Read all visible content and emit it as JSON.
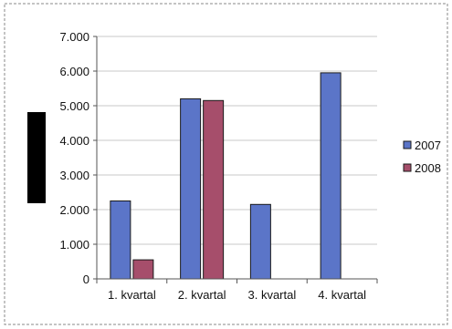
{
  "chart_data": {
    "type": "bar",
    "title": "",
    "xlabel": "",
    "ylabel": "",
    "categories": [
      "1. kvartal",
      "2. kvartal",
      "3. kvartal",
      "4. kvartal"
    ],
    "series": [
      {
        "name": "2007",
        "values": [
          2250,
          5200,
          2150,
          5950
        ],
        "color": "#5b75c8"
      },
      {
        "name": "2008",
        "values": [
          550,
          5150,
          null,
          null
        ],
        "color": "#a64e6b"
      }
    ],
    "ylim": [
      0,
      7000
    ],
    "yticks": [
      "0",
      "1.000",
      "2.000",
      "3.000",
      "4.000",
      "5.000",
      "6.000",
      "7.000"
    ],
    "grid": true,
    "legend_position": "right"
  },
  "colors": {
    "axis": "#555555",
    "grid": "#c8c8c8",
    "frame": "#777777",
    "bar_outline": "#1a1a1a",
    "ylabel_block": "#000000"
  }
}
